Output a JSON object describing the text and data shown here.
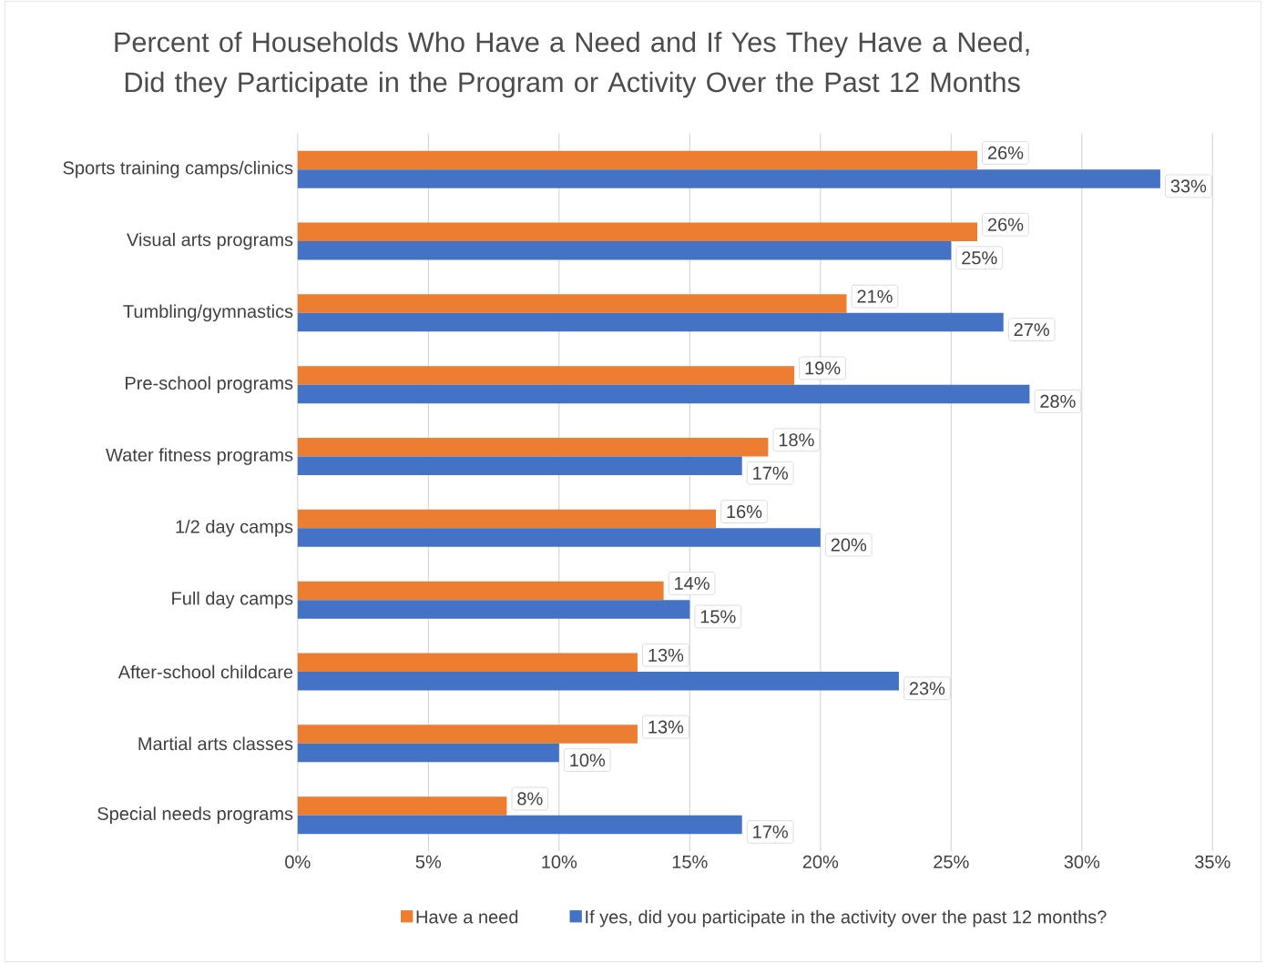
{
  "chart_data": {
    "type": "bar",
    "orientation": "horizontal",
    "title": "Percent of Households Who Have a Need and If Yes They Have a Need, Did they Participate in the Program or Activity Over the Past 12 Months",
    "categories": [
      "Sports training camps/clinics",
      "Visual arts programs",
      "Tumbling/gymnastics",
      "Pre-school programs",
      "Water fitness programs",
      "1/2 day camps",
      "Full day camps",
      "After-school childcare",
      "Martial arts classes",
      "Special needs programs"
    ],
    "series": [
      {
        "name": "Have a need",
        "color": "#ed7d31",
        "values": [
          26,
          26,
          21,
          19,
          18,
          16,
          14,
          13,
          13,
          8
        ],
        "value_labels": [
          "26%",
          "26%",
          "21%",
          "19%",
          "18%",
          "16%",
          "14%",
          "13%",
          "13%",
          "8%"
        ]
      },
      {
        "name": "If yes, did you participate in the activity over the past 12 months?",
        "color": "#4472c4",
        "values": [
          33,
          25,
          27,
          28,
          17,
          20,
          15,
          23,
          10,
          17
        ],
        "value_labels": [
          "33%",
          "25%",
          "27%",
          "28%",
          "17%",
          "20%",
          "15%",
          "23%",
          "10%",
          "17%"
        ]
      }
    ],
    "xlim": [
      0,
      35
    ],
    "xticks": [
      {
        "value": 0,
        "label": "0%"
      },
      {
        "value": 5,
        "label": "5%"
      },
      {
        "value": 10,
        "label": "10%"
      },
      {
        "value": 15,
        "label": "15%"
      },
      {
        "value": 20,
        "label": "20%"
      },
      {
        "value": 25,
        "label": "25%"
      },
      {
        "value": 30,
        "label": "30%"
      },
      {
        "value": 35,
        "label": "35%"
      }
    ],
    "grid": "x",
    "legend": "bottom"
  }
}
